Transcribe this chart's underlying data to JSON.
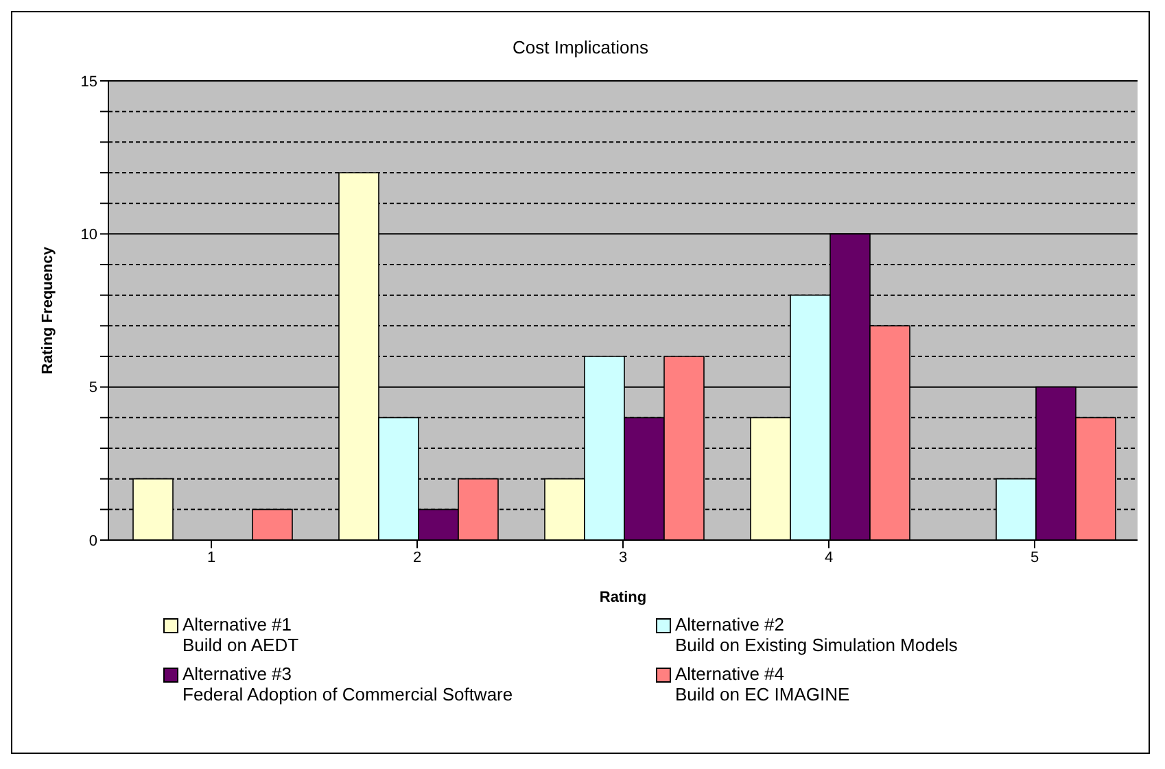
{
  "chart_data": {
    "type": "bar",
    "title": "Cost Implications",
    "xlabel": "Rating",
    "ylabel": "Rating Frequency",
    "categories": [
      "1",
      "2",
      "3",
      "4",
      "5"
    ],
    "series": [
      {
        "name": "Alternative #1\nBuild on AEDT",
        "color": "#ffffcc",
        "values": [
          2,
          12,
          2,
          4,
          0
        ]
      },
      {
        "name": "Alternative #2\nBuild on Existing Simulation Models",
        "color": "#ccffff",
        "values": [
          0,
          4,
          6,
          8,
          2
        ]
      },
      {
        "name": "Alternative #3\nFederal Adoption of Commercial Software",
        "color": "#660066",
        "values": [
          0,
          1,
          4,
          10,
          5
        ]
      },
      {
        "name": "Alternative #4\nBuild on EC IMAGINE",
        "color": "#ff8080",
        "values": [
          1,
          2,
          6,
          7,
          4
        ]
      }
    ],
    "ylim": [
      0,
      15
    ],
    "yticks": [
      0,
      {
        "value": 1,
        "label": null
      },
      {
        "value": 2,
        "label": null
      },
      {
        "value": 3,
        "label": null
      },
      {
        "value": 4,
        "label": null
      },
      5,
      {
        "value": 6,
        "label": null
      },
      {
        "value": 7,
        "label": null
      },
      {
        "value": 8,
        "label": null
      },
      {
        "value": 9,
        "label": null
      },
      10,
      {
        "value": 11,
        "label": null
      },
      {
        "value": 12,
        "label": null
      },
      {
        "value": 13,
        "label": null
      },
      {
        "value": 14,
        "label": null
      },
      15
    ],
    "grid": "y",
    "legend": "bottom"
  }
}
